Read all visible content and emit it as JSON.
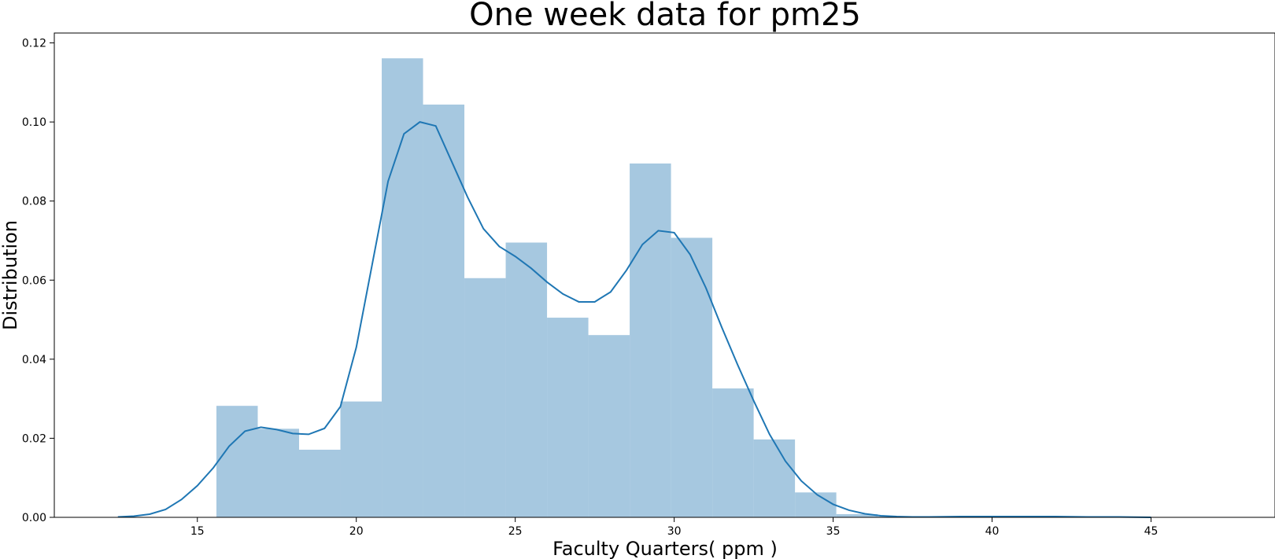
{
  "chart_data": {
    "type": "bar",
    "title": "One week data for pm25",
    "xlabel": "Faculty Quarters( ppm )",
    "ylabel": "Distribution",
    "xlim": [
      10.5,
      48.9
    ],
    "ylim": [
      0,
      0.1225
    ],
    "xticks": [
      15,
      20,
      25,
      30,
      35,
      40,
      45
    ],
    "yticks": [
      0.0,
      0.02,
      0.04,
      0.06,
      0.08,
      0.1,
      0.12
    ],
    "xtick_labels": [
      "15",
      "20",
      "25",
      "30",
      "35",
      "40",
      "45"
    ],
    "ytick_labels": [
      "0.00",
      "0.02",
      "0.04",
      "0.06",
      "0.08",
      "0.10",
      "0.12"
    ],
    "grid": false,
    "legend": "none",
    "histogram": {
      "bin_edges": [
        15.6,
        16.9,
        18.2,
        19.5,
        20.8,
        22.1,
        23.4,
        24.7,
        26.0,
        27.3,
        28.6,
        29.9,
        31.2,
        32.5,
        33.8,
        35.1,
        36.4,
        37.7,
        39.0,
        40.3,
        41.6,
        42.9
      ],
      "values": [
        0.0282,
        0.0224,
        0.0171,
        0.0293,
        0.1161,
        0.1044,
        0.0605,
        0.0695,
        0.0505,
        0.0461,
        0.0895,
        0.0707,
        0.0326,
        0.0197,
        0.0063,
        0.0008,
        0.0002,
        0.0002,
        0.0002,
        0.0002,
        0.0002
      ],
      "color": "#a6c8e0"
    },
    "kde": {
      "color": "#1f77b4",
      "x": [
        12.5,
        13.0,
        13.5,
        14.0,
        14.5,
        15.0,
        15.5,
        16.0,
        16.5,
        17.0,
        17.5,
        18.0,
        18.5,
        19.0,
        19.5,
        20.0,
        20.5,
        21.0,
        21.5,
        22.0,
        22.5,
        23.0,
        23.5,
        24.0,
        24.5,
        25.0,
        25.5,
        26.0,
        26.5,
        27.0,
        27.5,
        28.0,
        28.5,
        29.0,
        29.5,
        30.0,
        30.5,
        31.0,
        31.5,
        32.0,
        32.5,
        33.0,
        33.5,
        34.0,
        34.5,
        35.0,
        35.5,
        36.0,
        36.5,
        37.0,
        37.5,
        38.0,
        39.0,
        40.0,
        41.0,
        42.0,
        43.0,
        44.0,
        45.0
      ],
      "y": [
        0.0001,
        0.0003,
        0.0008,
        0.002,
        0.0045,
        0.008,
        0.0125,
        0.018,
        0.0218,
        0.0228,
        0.0222,
        0.0212,
        0.021,
        0.0225,
        0.028,
        0.043,
        0.064,
        0.085,
        0.097,
        0.1,
        0.099,
        0.09,
        0.081,
        0.073,
        0.0685,
        0.066,
        0.063,
        0.0595,
        0.0565,
        0.0545,
        0.0545,
        0.057,
        0.0625,
        0.069,
        0.0725,
        0.072,
        0.0665,
        0.058,
        0.048,
        0.0385,
        0.0295,
        0.021,
        0.0142,
        0.0092,
        0.0057,
        0.0033,
        0.0018,
        0.0009,
        0.0004,
        0.0002,
        0.0001,
        0.0001,
        0.0002,
        0.0002,
        0.0002,
        0.0002,
        0.0001,
        0.0001,
        0.0
      ]
    }
  }
}
